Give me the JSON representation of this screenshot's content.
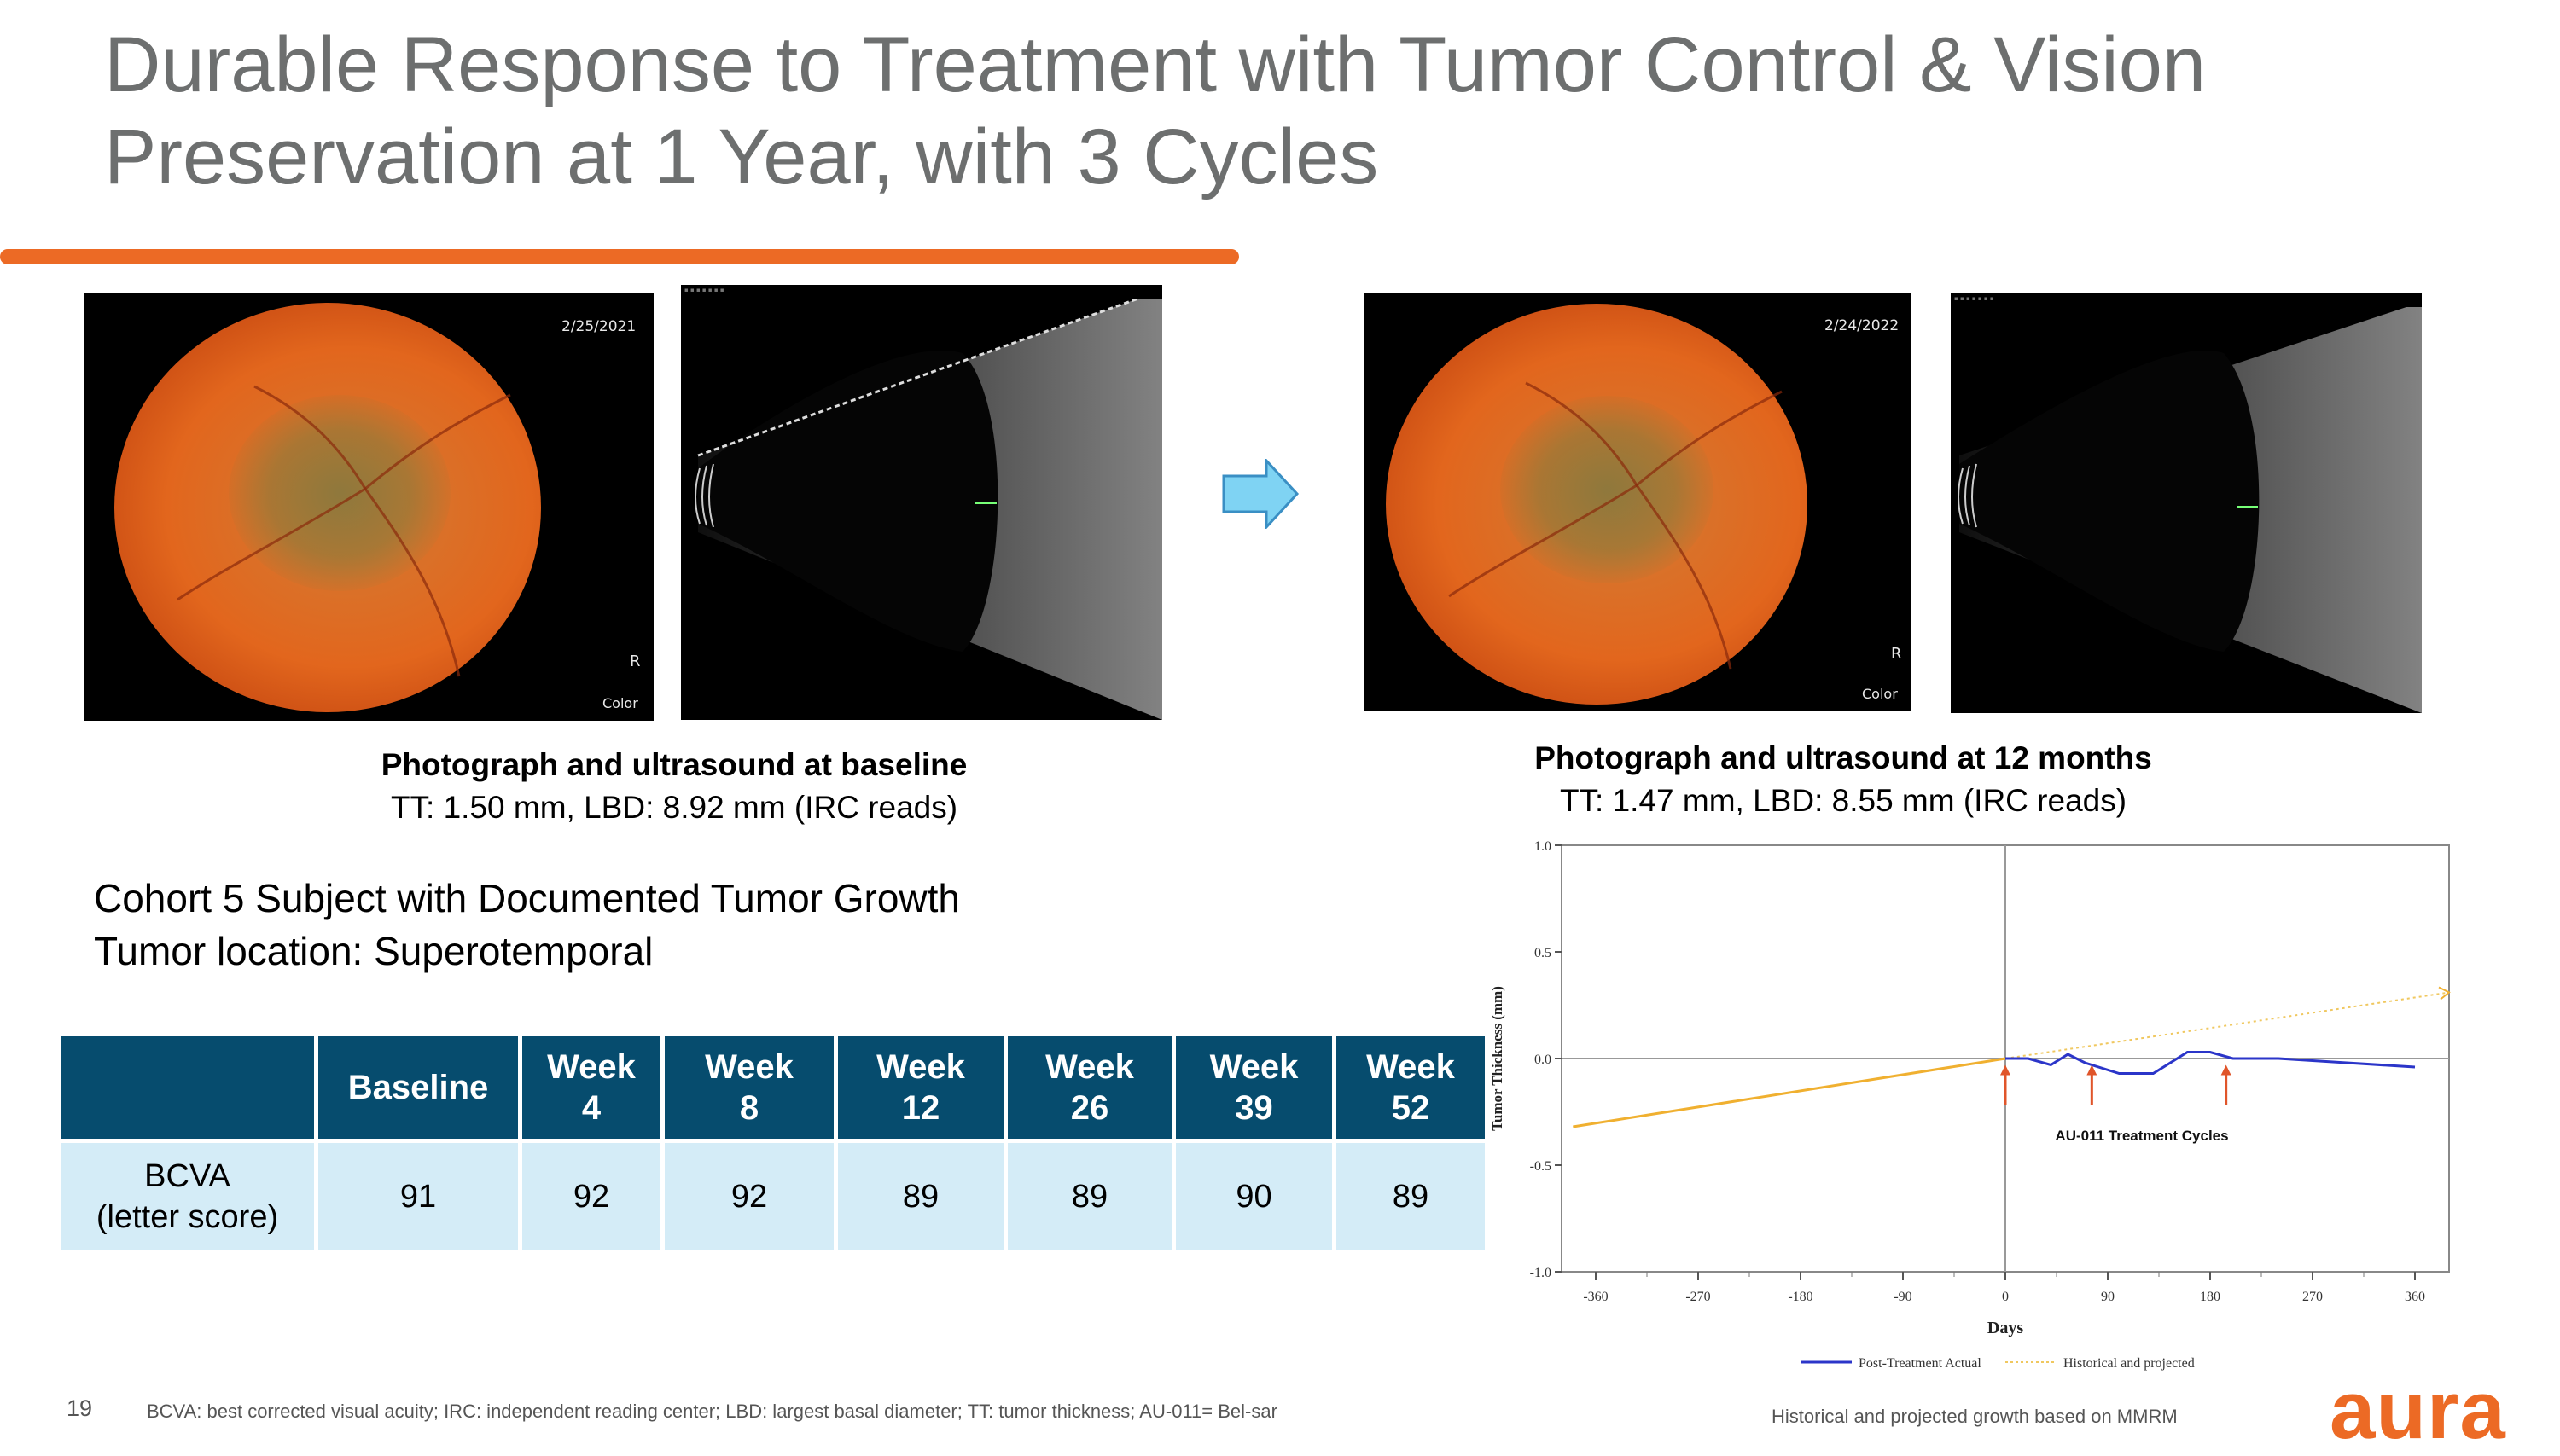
{
  "title": {
    "line1": "Durable Response to Treatment with Tumor Control & Vision",
    "line2": "Preservation at 1 Year, with 3 Cycles"
  },
  "baseline": {
    "photo_date": "2/25/2021",
    "photo_eye": "R",
    "photo_mode": "Color",
    "caption_bold": "Photograph and ultrasound at baseline",
    "caption_detail": "TT: 1.50 mm, LBD: 8.92 mm (IRC reads)"
  },
  "month12": {
    "photo_date": "2/24/2022",
    "photo_eye": "R",
    "photo_mode": "Color",
    "caption_bold": "Photograph and ultrasound at 12 months",
    "caption_detail": "TT: 1.47 mm, LBD: 8.55 mm (IRC reads)"
  },
  "subject": {
    "line1": "Cohort 5 Subject with Documented Tumor Growth",
    "line2": "Tumor location: Superotemporal"
  },
  "table": {
    "headers": [
      {
        "line1": "",
        "line2": ""
      },
      {
        "line1": "Baseline",
        "line2": ""
      },
      {
        "line1": "Week",
        "line2": "4"
      },
      {
        "line1": "Week",
        "line2": "8"
      },
      {
        "line1": "Week",
        "line2": "12"
      },
      {
        "line1": "Week",
        "line2": "26"
      },
      {
        "line1": "Week",
        "line2": "39"
      },
      {
        "line1": "Week",
        "line2": "52"
      }
    ],
    "row_label": {
      "line1": "BCVA",
      "line2": "(letter score)"
    },
    "values": [
      "91",
      "92",
      "92",
      "89",
      "89",
      "90",
      "89"
    ]
  },
  "chart_data": {
    "type": "line",
    "title": "",
    "xlabel": "Days",
    "ylabel": "Tumor Thickness (mm)",
    "xlim": [
      -390,
      390
    ],
    "ylim": [
      -1.0,
      1.0
    ],
    "xticks": [
      -360,
      -270,
      -180,
      -90,
      0,
      90,
      180,
      270,
      360
    ],
    "xtick_labels": [
      "-360",
      "-270",
      "-180",
      "-90",
      "0",
      "90",
      "180",
      "270",
      "360"
    ],
    "yticks": [
      1.0,
      0.5,
      0.0,
      -0.5,
      -1.0
    ],
    "ytick_labels": [
      "1.0",
      "0.5",
      "0.0",
      "-0.5",
      "-1.0"
    ],
    "series": [
      {
        "name": "Historical and projected",
        "color": "#f0b030",
        "style": "solid",
        "x": [
          -380,
          0
        ],
        "y": [
          -0.32,
          0.0
        ]
      },
      {
        "name": "Historical and projected (projection)",
        "color": "#f0c860",
        "style": "dotted",
        "x": [
          0,
          390
        ],
        "y": [
          0.0,
          0.31
        ]
      },
      {
        "name": "Post-Treatment Actual",
        "color": "#2b35c9",
        "style": "solid",
        "x": [
          0,
          20,
          40,
          55,
          70,
          100,
          130,
          160,
          180,
          200,
          240,
          300,
          360
        ],
        "y": [
          0.0,
          0.0,
          -0.03,
          0.02,
          -0.02,
          -0.07,
          -0.07,
          0.03,
          0.03,
          0.0,
          0.0,
          -0.02,
          -0.04
        ]
      }
    ],
    "treatment_cycle_days": [
      0,
      76,
      194
    ],
    "annotation": "AU-011 Treatment Cycles",
    "legend": [
      "Post-Treatment Actual",
      "Historical and projected"
    ],
    "legend_position": "bottom"
  },
  "footer": {
    "page_number": "19",
    "note": "BCVA: best corrected visual acuity; IRC: independent reading center; LBD: largest basal diameter; TT: tumor thickness; AU-011= Bel-sar",
    "right_note": "Historical and projected growth based on MMRM",
    "logo": "aura"
  },
  "colors": {
    "accent": "#ec6a25",
    "header_bg": "#064c6e",
    "row_bg": "#d4ecf7",
    "title_gray": "#6d6f6f"
  }
}
